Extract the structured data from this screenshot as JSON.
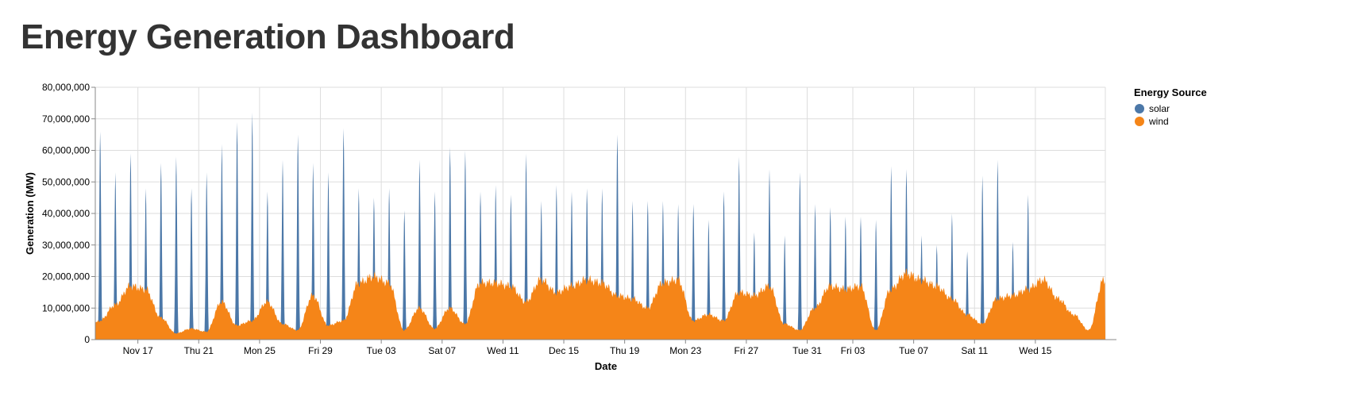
{
  "page": {
    "title": "Energy Generation Dashboard"
  },
  "chart_data": {
    "type": "area",
    "stacked": false,
    "xlabel": "Date",
    "ylabel": "Generation (MW)",
    "x_range": [
      "2024-11-14",
      "2025-01-19"
    ],
    "ylim": [
      0,
      80000000
    ],
    "y_ticks": [
      0,
      10000000,
      20000000,
      30000000,
      40000000,
      50000000,
      60000000,
      70000000,
      80000000
    ],
    "y_tick_labels": [
      "0",
      "10,000,000",
      "20,000,000",
      "30,000,000",
      "40,000,000",
      "50,000,000",
      "60,000,000",
      "70,000,000",
      "80,000,000"
    ],
    "x_ticks": [
      {
        "date": "2024-11-17",
        "label": "Nov 17"
      },
      {
        "date": "2024-11-21",
        "label": "Thu 21"
      },
      {
        "date": "2024-11-25",
        "label": "Mon 25"
      },
      {
        "date": "2024-11-29",
        "label": "Fri 29"
      },
      {
        "date": "2024-12-03",
        "label": "Tue 03"
      },
      {
        "date": "2024-12-07",
        "label": "Sat 07"
      },
      {
        "date": "2024-12-11",
        "label": "Wed 11"
      },
      {
        "date": "2024-12-15",
        "label": "Dec 15"
      },
      {
        "date": "2024-12-19",
        "label": "Thu 19"
      },
      {
        "date": "2024-12-23",
        "label": "Mon 23"
      },
      {
        "date": "2024-12-27",
        "label": "Fri 27"
      },
      {
        "date": "2024-12-31",
        "label": "Tue 31"
      },
      {
        "date": "2025-01-03",
        "label": "Fri 03"
      },
      {
        "date": "2025-01-07",
        "label": "Tue 07"
      },
      {
        "date": "2025-01-11",
        "label": "Sat 11"
      },
      {
        "date": "2025-01-15",
        "label": "Wed 15"
      }
    ],
    "grid": true,
    "legend": {
      "title": "Energy Source",
      "position": "top-right"
    },
    "series": [
      {
        "name": "solar",
        "color": "#4C78A8",
        "shape": "daily midday peaks",
        "points": [
          [
            "2024-11-14",
            66000000
          ],
          [
            "2024-11-15",
            53000000
          ],
          [
            "2024-11-16",
            59000000
          ],
          [
            "2024-11-17",
            48000000
          ],
          [
            "2024-11-18",
            56000000
          ],
          [
            "2024-11-19",
            58000000
          ],
          [
            "2024-11-20",
            48000000
          ],
          [
            "2024-11-21",
            53000000
          ],
          [
            "2024-11-22",
            62000000
          ],
          [
            "2024-11-23",
            69000000
          ],
          [
            "2024-11-24",
            72000000
          ],
          [
            "2024-11-25",
            47000000
          ],
          [
            "2024-11-26",
            57000000
          ],
          [
            "2024-11-27",
            65000000
          ],
          [
            "2024-11-28",
            56000000
          ],
          [
            "2024-11-29",
            53000000
          ],
          [
            "2024-11-30",
            67000000
          ],
          [
            "2024-12-01",
            48000000
          ],
          [
            "2024-12-02",
            45000000
          ],
          [
            "2024-12-03",
            48000000
          ],
          [
            "2024-12-04",
            41000000
          ],
          [
            "2024-12-05",
            57000000
          ],
          [
            "2024-12-06",
            47000000
          ],
          [
            "2024-12-07",
            61000000
          ],
          [
            "2024-12-08",
            60000000
          ],
          [
            "2024-12-09",
            47000000
          ],
          [
            "2024-12-10",
            49000000
          ],
          [
            "2024-12-11",
            46000000
          ],
          [
            "2024-12-12",
            59000000
          ],
          [
            "2024-12-13",
            44000000
          ],
          [
            "2024-12-14",
            49000000
          ],
          [
            "2024-12-15",
            47000000
          ],
          [
            "2024-12-16",
            48000000
          ],
          [
            "2024-12-17",
            48000000
          ],
          [
            "2024-12-18",
            65000000
          ],
          [
            "2024-12-19",
            44000000
          ],
          [
            "2024-12-20",
            44000000
          ],
          [
            "2024-12-21",
            44000000
          ],
          [
            "2024-12-22",
            43000000
          ],
          [
            "2024-12-23",
            43000000
          ],
          [
            "2024-12-24",
            38000000
          ],
          [
            "2024-12-25",
            47000000
          ],
          [
            "2024-12-26",
            58000000
          ],
          [
            "2024-12-27",
            34000000
          ],
          [
            "2024-12-28",
            54000000
          ],
          [
            "2024-12-29",
            33000000
          ],
          [
            "2024-12-30",
            53000000
          ],
          [
            "2024-12-31",
            43000000
          ],
          [
            "2025-01-01",
            42000000
          ],
          [
            "2025-01-02",
            39000000
          ],
          [
            "2025-01-03",
            39000000
          ],
          [
            "2025-01-04",
            38000000
          ],
          [
            "2025-01-05",
            55000000
          ],
          [
            "2025-01-06",
            54000000
          ],
          [
            "2025-01-07",
            33000000
          ],
          [
            "2025-01-08",
            30000000
          ],
          [
            "2025-01-09",
            40000000
          ],
          [
            "2025-01-10",
            28000000
          ],
          [
            "2025-01-11",
            52000000
          ],
          [
            "2025-01-12",
            57000000
          ],
          [
            "2025-01-13",
            31000000
          ],
          [
            "2025-01-14",
            46000000
          ]
        ]
      },
      {
        "name": "wind",
        "color": "#F58518",
        "shape": "continuous",
        "points": [
          [
            "2024-11-13",
            1000000
          ],
          [
            "2024-11-14",
            6000000
          ],
          [
            "2024-11-15",
            11000000
          ],
          [
            "2024-11-16",
            17000000
          ],
          [
            "2024-11-17",
            16000000
          ],
          [
            "2024-11-18",
            7000000
          ],
          [
            "2024-11-19",
            2000000
          ],
          [
            "2024-11-20",
            3500000
          ],
          [
            "2024-11-21",
            2500000
          ],
          [
            "2024-11-22",
            12000000
          ],
          [
            "2024-11-23",
            4500000
          ],
          [
            "2024-11-24",
            6000000
          ],
          [
            "2024-11-25",
            12000000
          ],
          [
            "2024-11-26",
            5000000
          ],
          [
            "2024-11-27",
            3000000
          ],
          [
            "2024-11-28",
            14000000
          ],
          [
            "2024-11-29",
            4500000
          ],
          [
            "2024-11-30",
            6000000
          ],
          [
            "2024-12-01",
            18000000
          ],
          [
            "2024-12-02",
            20000000
          ],
          [
            "2024-12-03",
            18000000
          ],
          [
            "2024-12-04",
            3000000
          ],
          [
            "2024-12-05",
            10000000
          ],
          [
            "2024-12-06",
            3500000
          ],
          [
            "2024-12-07",
            10000000
          ],
          [
            "2024-12-08",
            5000000
          ],
          [
            "2024-12-09",
            18000000
          ],
          [
            "2024-12-10",
            18000000
          ],
          [
            "2024-12-11",
            17000000
          ],
          [
            "2024-12-12",
            12000000
          ],
          [
            "2024-12-13",
            19000000
          ],
          [
            "2024-12-14",
            15000000
          ],
          [
            "2024-12-15",
            17000000
          ],
          [
            "2024-12-16",
            19000000
          ],
          [
            "2024-12-17",
            18000000
          ],
          [
            "2024-12-18",
            14000000
          ],
          [
            "2024-12-19",
            13000000
          ],
          [
            "2024-12-20",
            10000000
          ],
          [
            "2024-12-21",
            18000000
          ],
          [
            "2024-12-22",
            19000000
          ],
          [
            "2024-12-23",
            6000000
          ],
          [
            "2024-12-24",
            8000000
          ],
          [
            "2024-12-25",
            6000000
          ],
          [
            "2024-12-26",
            15000000
          ],
          [
            "2024-12-27",
            14000000
          ],
          [
            "2024-12-28",
            17000000
          ],
          [
            "2024-12-29",
            5000000
          ],
          [
            "2024-12-30",
            3000000
          ],
          [
            "2024-12-31",
            10000000
          ],
          [
            "2025-01-01",
            17000000
          ],
          [
            "2025-01-02",
            16000000
          ],
          [
            "2025-01-03",
            17000000
          ],
          [
            "2025-01-04",
            3000000
          ],
          [
            "2025-01-05",
            16000000
          ],
          [
            "2025-01-06",
            21000000
          ],
          [
            "2025-01-07",
            19000000
          ],
          [
            "2025-01-08",
            17000000
          ],
          [
            "2025-01-09",
            13000000
          ],
          [
            "2025-01-10",
            8000000
          ],
          [
            "2025-01-11",
            5000000
          ],
          [
            "2025-01-12",
            13000000
          ],
          [
            "2025-01-13",
            14000000
          ],
          [
            "2025-01-14",
            16000000
          ],
          [
            "2025-01-15",
            19000000
          ],
          [
            "2025-01-16",
            13000000
          ],
          [
            "2025-01-17",
            8000000
          ],
          [
            "2025-01-18",
            3000000
          ],
          [
            "2025-01-19",
            19000000
          ]
        ]
      }
    ]
  }
}
